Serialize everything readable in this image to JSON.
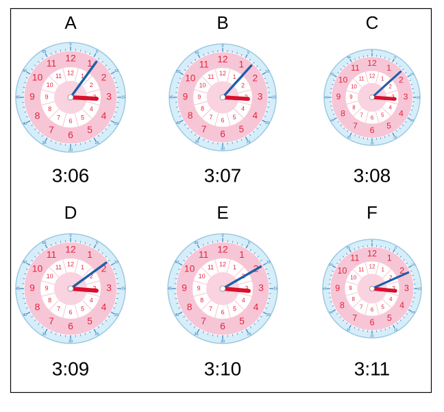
{
  "panels": [
    {
      "letter": "A",
      "time": "3:06"
    },
    {
      "letter": "B",
      "time": "3:07"
    },
    {
      "letter": "C",
      "time": "3:08"
    },
    {
      "letter": "D",
      "time": "3:09"
    },
    {
      "letter": "E",
      "time": "3:10"
    },
    {
      "letter": "F",
      "time": "3:11"
    }
  ],
  "clock_face": {
    "hours": [
      "12",
      "1",
      "2",
      "3",
      "4",
      "5",
      "6",
      "7",
      "8",
      "9",
      "10",
      "11"
    ],
    "minutes": [
      "0",
      "5",
      "10",
      "15",
      "20",
      "25",
      "30",
      "35",
      "40",
      "45",
      "50",
      "55"
    ]
  }
}
